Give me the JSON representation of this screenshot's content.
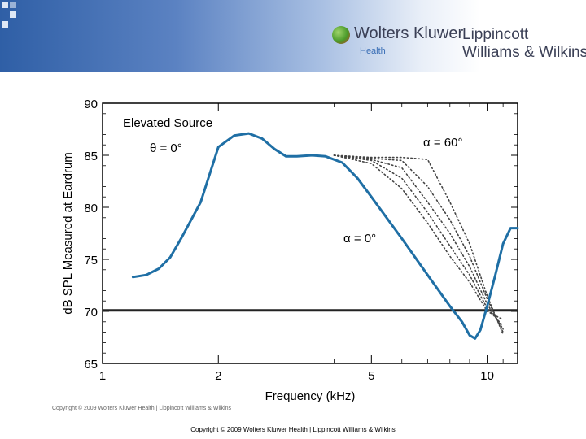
{
  "header": {
    "publisher": "Wolters Kluwer",
    "division": "Health",
    "imprint_line1": "Lippincott",
    "imprint_line2": "Williams & Wilkins",
    "colors": {
      "band_dark": "#2f5fa6",
      "band_light": "#e9eff8"
    },
    "logo_icon": "globe-logo-icon"
  },
  "chart_data": {
    "type": "line",
    "title": "Elevated Source",
    "xlabel": "Frequency (kHz)",
    "ylabel": "dB SPL Measured at Eardrum",
    "x_scale": "log",
    "xlim": [
      1,
      12
    ],
    "ylim": [
      65,
      90
    ],
    "x_ticks": [
      1,
      2,
      5,
      10
    ],
    "y_ticks": [
      65,
      70,
      75,
      80,
      85,
      90
    ],
    "reference_y": 70.1,
    "annotations": [
      "θ = 0°",
      "α = 60°",
      "α = 0°"
    ],
    "series": [
      {
        "style": "solid",
        "color": "#1f6fa5",
        "x": [
          1.2,
          1.3,
          1.4,
          1.5,
          1.6,
          1.8,
          2.0,
          2.2,
          2.4,
          2.6,
          2.8,
          3.0,
          3.2,
          3.5,
          3.8,
          4.2,
          4.6,
          5.0,
          6.0,
          7.0,
          8.0,
          8.6,
          9.0,
          9.3,
          9.6,
          10.0,
          10.5,
          11.0,
          11.5,
          12.0
        ],
        "y": [
          73.3,
          73.5,
          74.1,
          75.2,
          77.0,
          80.5,
          85.8,
          86.9,
          87.1,
          86.6,
          85.6,
          84.9,
          84.9,
          85.0,
          84.9,
          84.3,
          82.8,
          81.0,
          77.0,
          73.5,
          70.5,
          69.0,
          67.7,
          67.4,
          68.2,
          70.5,
          73.5,
          76.5,
          78.0,
          78.0
        ]
      },
      {
        "style": "dotted",
        "color": "#444444",
        "x": [
          4.0,
          5.0,
          6.0,
          7.0,
          8.0,
          9.0,
          10.0,
          11.0
        ],
        "y": [
          85.0,
          84.2,
          81.8,
          78.5,
          75.3,
          72.8,
          70.0,
          69.2
        ]
      },
      {
        "style": "dotted",
        "color": "#444444",
        "x": [
          4.0,
          5.0,
          6.0,
          7.0,
          8.0,
          9.0,
          10.0,
          11.0
        ],
        "y": [
          85.0,
          84.5,
          82.8,
          79.5,
          76.3,
          73.5,
          70.3,
          68.6
        ]
      },
      {
        "style": "dotted",
        "color": "#444444",
        "x": [
          4.0,
          5.0,
          6.0,
          7.0,
          8.0,
          9.0,
          10.0,
          11.0
        ],
        "y": [
          85.0,
          84.6,
          83.8,
          80.5,
          77.5,
          74.3,
          70.7,
          68.3
        ]
      },
      {
        "style": "dotted",
        "color": "#444444",
        "x": [
          4.0,
          5.0,
          6.0,
          7.0,
          8.0,
          9.0,
          10.0,
          11.0
        ],
        "y": [
          85.0,
          84.7,
          84.5,
          82.0,
          78.8,
          75.3,
          71.2,
          68.0
        ]
      },
      {
        "style": "dotted",
        "color": "#444444",
        "x": [
          4.0,
          5.0,
          6.0,
          7.0,
          8.0,
          9.0,
          10.0,
          11.0
        ],
        "y": [
          85.0,
          84.8,
          84.8,
          84.6,
          80.5,
          76.5,
          71.5,
          67.8
        ]
      }
    ]
  },
  "figure_credit": "Copyright © 2009 Wolters Kluwer Health | Lippincott Williams & Wilkins",
  "footer": "Copyright © 2009 Wolters Kluwer Health | Lippincott Williams & Wilkins"
}
